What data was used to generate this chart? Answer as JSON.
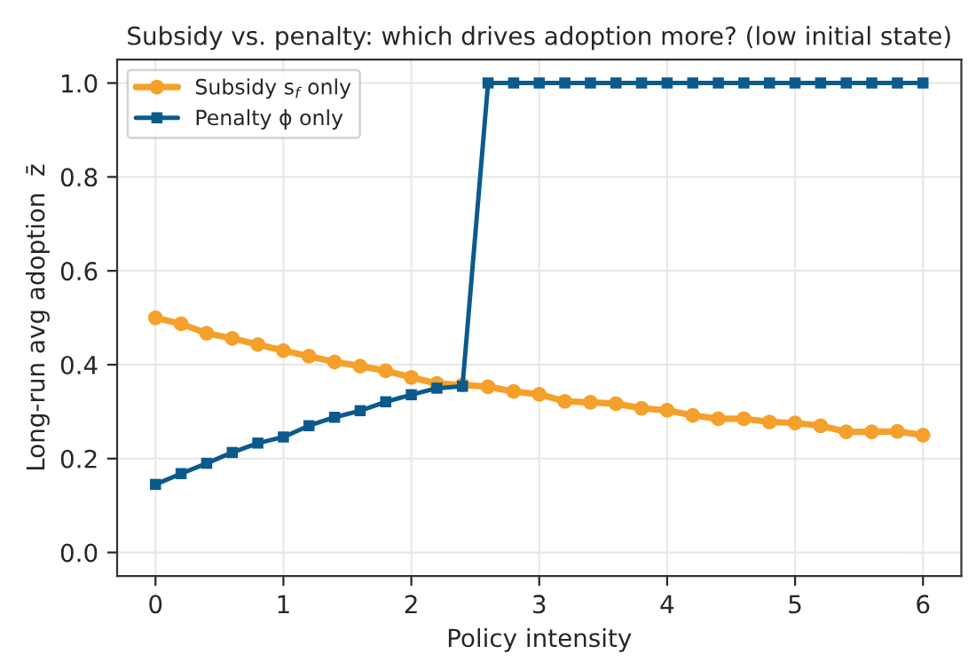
{
  "chart_data": {
    "type": "line",
    "title": "Subsidy vs. penalty: which drives adoption more? (low initial state)",
    "xlabel": "Policy intensity",
    "ylabel": "Long-run avg adoption  z̄",
    "x": [
      0,
      0.2,
      0.4,
      0.6,
      0.8,
      1.0,
      1.2,
      1.4,
      1.6,
      1.8,
      2.0,
      2.2,
      2.4,
      2.6,
      2.8,
      3.0,
      3.2,
      3.4,
      3.6,
      3.8,
      4.0,
      4.2,
      4.4,
      4.6,
      4.8,
      5.0,
      5.2,
      5.4,
      5.6,
      5.8,
      6.0
    ],
    "series": [
      {
        "name": "Subsidy s$_{f}$ only",
        "color": "#f5a02a",
        "marker": "circle",
        "values": [
          0.5,
          0.487,
          0.467,
          0.456,
          0.443,
          0.43,
          0.418,
          0.406,
          0.397,
          0.387,
          0.373,
          0.36,
          0.357,
          0.353,
          0.343,
          0.337,
          0.322,
          0.32,
          0.317,
          0.307,
          0.303,
          0.292,
          0.285,
          0.285,
          0.278,
          0.276,
          0.27,
          0.257,
          0.257,
          0.258,
          0.25
        ]
      },
      {
        "name": "Penalty ϕ only",
        "color": "#0b5a8c",
        "marker": "square",
        "values": [
          0.145,
          0.168,
          0.19,
          0.213,
          0.233,
          0.246,
          0.27,
          0.288,
          0.302,
          0.321,
          0.336,
          0.35,
          0.354,
          1.0,
          1.0,
          1.0,
          1.0,
          1.0,
          1.0,
          1.0,
          1.0,
          1.0,
          1.0,
          1.0,
          1.0,
          1.0,
          1.0,
          1.0,
          1.0,
          1.0,
          1.0
        ]
      }
    ],
    "xlim": [
      -0.3,
      6.3
    ],
    "ylim": [
      -0.05,
      1.05
    ],
    "xticks": [
      0,
      1,
      2,
      3,
      4,
      5,
      6
    ],
    "yticks": [
      {
        "value": 0,
        "label": "0.0"
      },
      {
        "value": 0.2,
        "label": "0.2"
      },
      {
        "value": 0.4,
        "label": "0.4"
      },
      {
        "value": 0.6,
        "label": "0.6"
      },
      {
        "value": 0.8,
        "label": "0.8"
      },
      {
        "value": 1.0,
        "label": "1.0"
      }
    ],
    "grid": true,
    "legend": "top left",
    "line_style": "solid"
  }
}
